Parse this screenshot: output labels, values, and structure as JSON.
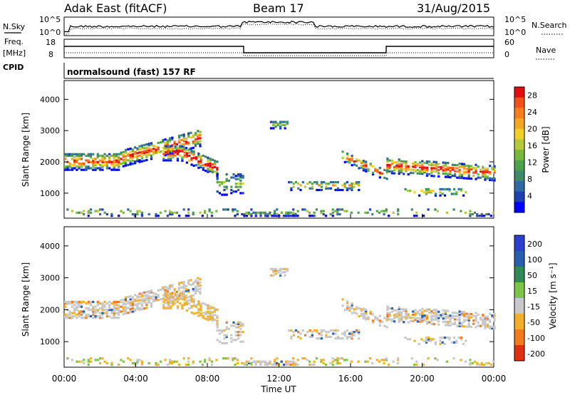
{
  "header": {
    "station": "Adak East (fitACF)",
    "beam": "Beam 17",
    "date": "31/Aug/2015"
  },
  "panels": {
    "nsky_label": "N.Sky",
    "nsky_ticks": [
      "10^5",
      "10^0"
    ],
    "nsearch_label": "N.Search",
    "nsearch_ticks": [
      "10^5",
      "10^0"
    ],
    "freq_label_1": "Freq.",
    "freq_label_2": "[MHz]",
    "freq_ticks": [
      "18",
      "8"
    ],
    "nave_label": "Nave",
    "nave_ticks": [
      "60",
      "0"
    ],
    "cpid_label": "CPID",
    "cpid_text": "normalsound (fast) 157 RF"
  },
  "chart_data": [
    {
      "type": "heatmap",
      "name": "power",
      "ylabel": "Slant Range [km]",
      "y_ticks": [
        "4000",
        "3000",
        "2000",
        "1000"
      ],
      "ylim": [
        200,
        4600
      ],
      "colorbar_label": "Power [dB]",
      "colorbar_ticks": [
        "28",
        "24",
        "20",
        "16",
        "12",
        "8",
        "4"
      ],
      "colorbar_range": [
        0,
        30
      ],
      "colors": [
        "#0000ff",
        "#1f3fb5",
        "#2f6aa3",
        "#3d8a6a",
        "#4da24d",
        "#78b83c",
        "#b5c93a",
        "#f2d02a",
        "#f5a623",
        "#f57f1c",
        "#f2521a",
        "#e01010"
      ]
    },
    {
      "type": "heatmap",
      "name": "velocity",
      "ylabel": "Slant Range [km]",
      "y_ticks": [
        "4000",
        "3000",
        "2000",
        "1000"
      ],
      "ylim": [
        200,
        4600
      ],
      "colorbar_label": "Velocity [m s⁻¹]",
      "colorbar_ticks": [
        "200",
        "100",
        "50",
        "15",
        "-15",
        "-50",
        "-100",
        "-200"
      ],
      "colorbar_range": [
        -250,
        250
      ],
      "colors": [
        "#2a3fd0",
        "#2a5fb0",
        "#2f8a55",
        "#7cc44a",
        "#c8c8c8",
        "#f2b02a",
        "#f07a1c",
        "#e03010"
      ]
    }
  ],
  "x_axis": {
    "label": "Time UT",
    "ticks": [
      "00:00",
      "04:00",
      "08:00",
      "12:00",
      "16:00",
      "20:00",
      "00:00"
    ],
    "range_hours": [
      0,
      24
    ]
  }
}
